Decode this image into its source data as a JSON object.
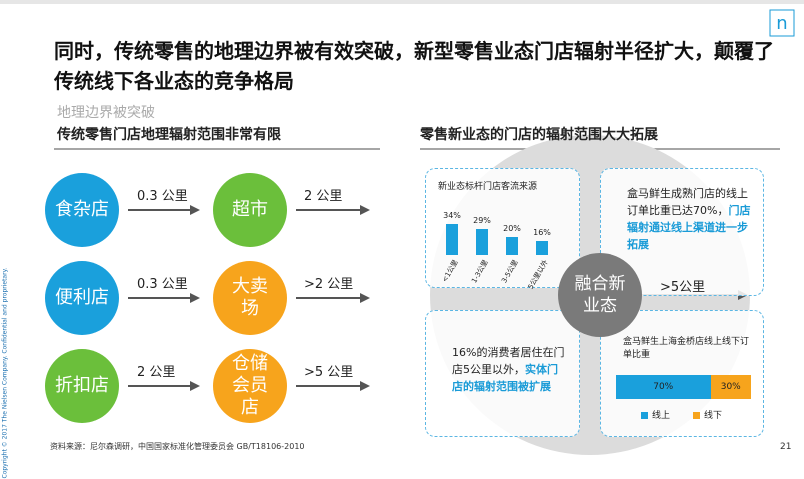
{
  "header": {
    "title": "同时，传统零售的地理边界被有效突破，新型零售业态门店辐射半径扩大，颠覆了传统线下各业态的竞争格局",
    "subtitle": "地理边界被突破"
  },
  "left": {
    "heading": "传统零售门店地理辐射范围非常有限",
    "rows": [
      {
        "from": "食杂店",
        "from_color": "#1aa0dc",
        "distance1": "0.3 公里",
        "to": "超市",
        "to_color": "#6bbf3b",
        "distance2": "2 公里"
      },
      {
        "from": "便利店",
        "from_color": "#1aa0dc",
        "distance1": "0.3 公里",
        "to": "大卖场",
        "to_color": "#f7a41c",
        "distance2": ">2 公里"
      },
      {
        "from": "折扣店",
        "from_color": "#6bbf3b",
        "distance1": "2 公里",
        "to": "仓储会员店",
        "to_color": "#f7a41c",
        "distance2": ">5 公里"
      }
    ]
  },
  "right": {
    "heading": "零售新业态的门店的辐射范围大大拓展",
    "center": "融合新业态",
    "center_distance": ">5公里",
    "traffic_chart": {
      "title": "新业态标杆门店客流来源",
      "categories": [
        "<1公里",
        "1-3公里",
        "3-5公里",
        "5公里以外"
      ],
      "values": [
        34,
        29,
        20,
        16
      ],
      "value_labels": [
        "34%",
        "29%",
        "20%",
        "16%"
      ],
      "color": "#1aa0dc"
    },
    "online_note": {
      "text": "盒马鲜生成熟门店的线上订单比重已达70%，",
      "highlight": "门店辐射通过线上渠道进一步拓展"
    },
    "resident_note": {
      "text": "16%的消费者居住在门店5公里以外，",
      "highlight": "实体门店的辐射范围被扩展"
    },
    "order_split": {
      "title": "盒马鲜生上海金桥店线上线下订单比重",
      "series": [
        {
          "name": "线上",
          "value": 70,
          "label": "70%",
          "color": "#1aa0dc"
        },
        {
          "name": "线下",
          "value": 30,
          "label": "30%",
          "color": "#f7a41c"
        }
      ]
    }
  },
  "footer": {
    "source": "资料来源：尼尔森调研，中国国家标准化管理委员会 GB/T18106-2010",
    "page": "21",
    "copyright": "Copyright © 2017 The Nielsen Company. Confidential and proprietary."
  }
}
